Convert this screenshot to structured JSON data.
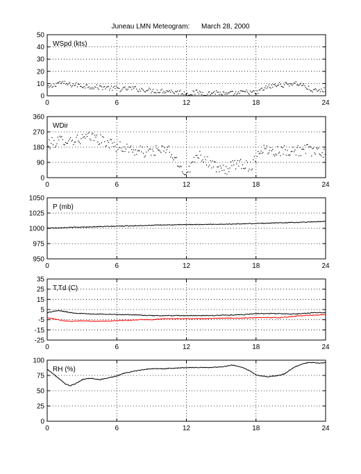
{
  "title": "Juneau LMN Meteogram:      March 28, 2000",
  "chart_data": [
    {
      "type": "scatter",
      "label": "WSpd (kts)",
      "xlim": [
        0,
        24
      ],
      "ylim": [
        0,
        50
      ],
      "xticks": [
        "0",
        "6",
        "12",
        "18",
        "24"
      ],
      "yticks": [
        "0",
        "10",
        "20",
        "30",
        "40",
        "50"
      ],
      "grid": true,
      "series": [
        {
          "color": "#000000",
          "style": "dots",
          "x": [
            0,
            0.5,
            1,
            1.5,
            2,
            2.5,
            3,
            3.5,
            4,
            4.5,
            5,
            5.5,
            6,
            6.5,
            7,
            7.5,
            8,
            8.5,
            9,
            9.5,
            10,
            10.5,
            11,
            11.5,
            12,
            12.5,
            13,
            13.5,
            14,
            14.5,
            15,
            15.5,
            16,
            16.5,
            17,
            17.5,
            18,
            18.5,
            19,
            19.5,
            20,
            20.5,
            21,
            21.5,
            22,
            22.5,
            23,
            23.5,
            24
          ],
          "y": [
            6,
            8,
            11,
            10,
            9,
            9,
            8,
            8,
            7,
            7,
            7,
            6,
            6,
            5,
            6,
            6,
            5,
            5,
            4,
            4,
            4,
            4,
            3,
            3,
            2,
            2,
            3,
            2,
            2,
            3,
            2,
            1,
            2,
            2,
            3,
            3,
            2,
            5,
            7,
            8,
            9,
            9,
            10,
            10,
            9,
            6,
            4,
            4,
            5
          ]
        }
      ]
    },
    {
      "type": "scatter",
      "label": "WDir",
      "xlim": [
        0,
        24
      ],
      "ylim": [
        0,
        360
      ],
      "xticks": [
        "0",
        "6",
        "12",
        "18",
        "24"
      ],
      "yticks": [
        "0",
        "90",
        "180",
        "270",
        "360"
      ],
      "grid": true,
      "series": [
        {
          "color": "#000000",
          "style": "dots",
          "x": [
            0,
            0.5,
            1,
            1.5,
            2,
            2.5,
            3,
            3.5,
            4,
            4.5,
            5,
            5.5,
            6,
            6.5,
            7,
            7.5,
            8,
            8.5,
            9,
            9.5,
            10,
            10.5,
            11,
            11.5,
            12,
            12.5,
            13,
            13.5,
            14,
            14.5,
            15,
            15.5,
            16,
            16.5,
            17,
            17.5,
            18,
            18.5,
            19,
            19.5,
            20,
            20.5,
            21,
            21.5,
            22,
            22.5,
            23,
            23.5,
            24
          ],
          "y": [
            195,
            205,
            215,
            225,
            220,
            225,
            230,
            235,
            240,
            225,
            210,
            200,
            185,
            180,
            170,
            160,
            155,
            150,
            155,
            160,
            160,
            165,
            100,
            60,
            30,
            80,
            150,
            110,
            90,
            60,
            40,
            50,
            70,
            90,
            80,
            60,
            120,
            170,
            165,
            160,
            160,
            160,
            160,
            160,
            160,
            165,
            155,
            140,
            150
          ]
        }
      ]
    },
    {
      "type": "line",
      "label": "P (mb)",
      "xlim": [
        0,
        24
      ],
      "ylim": [
        950,
        1050
      ],
      "xticks": [
        "0",
        "6",
        "12",
        "18",
        "24"
      ],
      "yticks": [
        "950",
        "975",
        "1000",
        "1025",
        "1050"
      ],
      "grid": true,
      "series": [
        {
          "color": "#000000",
          "x": [
            0,
            2,
            4,
            6,
            8,
            10,
            12,
            14,
            16,
            18,
            20,
            22,
            24
          ],
          "y": [
            1000.5,
            1001.5,
            1002.5,
            1003.5,
            1004.5,
            1005.5,
            1006,
            1006.5,
            1007,
            1008,
            1009,
            1010,
            1011.5
          ]
        }
      ]
    },
    {
      "type": "line",
      "label": "T,Td (C)",
      "xlim": [
        0,
        24
      ],
      "ylim": [
        -25,
        35
      ],
      "xticks": [
        "0",
        "6",
        "12",
        "18",
        "24"
      ],
      "yticks": [
        "-25",
        "-15",
        "-5",
        "5",
        "15",
        "25",
        "35"
      ],
      "grid": true,
      "series": [
        {
          "color": "#000000",
          "x": [
            0,
            0.5,
            1,
            1.5,
            2,
            3,
            4,
            5,
            6,
            7,
            8,
            9,
            10,
            11,
            12,
            13,
            14,
            15,
            16,
            17,
            18,
            19,
            20,
            21,
            22,
            23,
            24
          ],
          "y": [
            2,
            3,
            4,
            3,
            2,
            1,
            0.5,
            0.5,
            0,
            0,
            -0.5,
            -1,
            -1,
            -1,
            -1,
            -1,
            -1,
            -0.5,
            -0.5,
            0,
            1,
            1,
            1,
            0.5,
            1,
            2,
            2
          ]
        },
        {
          "color": "#ff0000",
          "x": [
            0,
            0.5,
            1,
            1.5,
            2,
            3,
            4,
            5,
            6,
            7,
            8,
            9,
            10,
            11,
            12,
            13,
            14,
            15,
            16,
            17,
            18,
            19,
            20,
            21,
            22,
            23,
            24
          ],
          "y": [
            -3,
            -4,
            -5,
            -6,
            -6.5,
            -6,
            -6.5,
            -6.5,
            -6,
            -5.5,
            -5,
            -5,
            -4,
            -4,
            -4,
            -4,
            -4,
            -3.5,
            -3.5,
            -3.5,
            -3,
            -3,
            -3,
            -2,
            -1,
            -0.5,
            0
          ]
        }
      ]
    },
    {
      "type": "line",
      "label": "RH (%)",
      "xlim": [
        0,
        24
      ],
      "ylim": [
        0,
        100
      ],
      "xticks": [
        "0",
        "6",
        "12",
        "18",
        "24"
      ],
      "yticks": [
        "0",
        "25",
        "50",
        "75",
        "100"
      ],
      "grid": true,
      "series": [
        {
          "color": "#000000",
          "x": [
            0,
            0.5,
            1,
            1.5,
            2,
            2.5,
            3,
            3.5,
            4,
            4.5,
            5,
            5.5,
            6,
            6.5,
            7,
            7.5,
            8,
            9,
            10,
            11,
            12,
            13,
            14,
            15,
            16,
            16.5,
            17,
            17.5,
            18,
            18.5,
            19,
            19.5,
            20,
            20.5,
            21,
            21.5,
            22,
            22.5,
            23,
            23.5,
            24
          ],
          "y": [
            85,
            78,
            70,
            62,
            58,
            62,
            68,
            70,
            70,
            68,
            70,
            72,
            74,
            78,
            80,
            82,
            84,
            86,
            86,
            87,
            88,
            88,
            88,
            89,
            92,
            90,
            87,
            82,
            76,
            74,
            73,
            74,
            75,
            78,
            85,
            90,
            94,
            96,
            96,
            95,
            96
          ]
        }
      ]
    }
  ]
}
